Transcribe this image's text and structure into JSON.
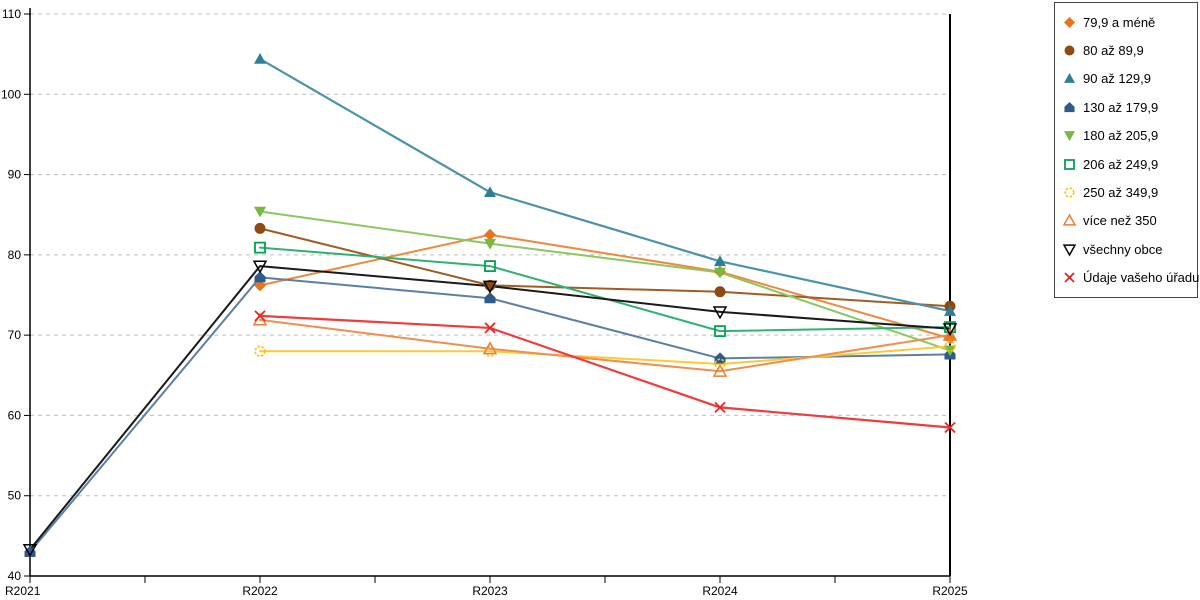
{
  "chart_data": {
    "type": "line",
    "title": "",
    "xlabel": "",
    "ylabel": "",
    "x_labels": [
      "R2021",
      "R2022",
      "R2023",
      "R2024",
      "R2025"
    ],
    "y_ticks": [
      40,
      50,
      60,
      70,
      80,
      90,
      100,
      110
    ],
    "ylim": [
      40,
      110
    ],
    "grid": "horizontal-dashed",
    "legend_position": "top-right-outside",
    "grid_color": "#bfbfbf",
    "axis_color": "#000000",
    "series": [
      {
        "name": "79,9 a méně",
        "marker": "diamond",
        "color": "#E8741E",
        "line_color": "#ED8A3E",
        "width": 2,
        "values": [
          null,
          76.2,
          82.5,
          77.9,
          69.6
        ]
      },
      {
        "name": "80 až 89,9",
        "marker": "circle",
        "color": "#8E4A10",
        "line_color": "#A05C22",
        "width": 2,
        "values": [
          null,
          83.3,
          76.2,
          75.4,
          73.6
        ]
      },
      {
        "name": "90 až 129,9",
        "marker": "triangle-up",
        "color": "#2E7F96",
        "line_color": "#4B93A7",
        "width": 2.2,
        "values": [
          null,
          104.4,
          87.8,
          79.2,
          73.0
        ]
      },
      {
        "name": "130 až 179,9",
        "marker": "pentagon",
        "color": "#2E5C8A",
        "line_color": "#5B7FA5",
        "width": 2,
        "values": [
          43.0,
          77.2,
          74.6,
          67.1,
          67.6
        ]
      },
      {
        "name": "180 až 205,9",
        "marker": "triangle-down",
        "color": "#76B93F",
        "line_color": "#8CC75F",
        "width": 2,
        "values": [
          null,
          85.4,
          81.4,
          77.8,
          68.1
        ]
      },
      {
        "name": "206 až 249,9",
        "marker": "square-open",
        "color": "#04A155",
        "line_color": "#2EB173",
        "width": 2,
        "values": [
          null,
          80.9,
          78.6,
          70.5,
          71.0
        ]
      },
      {
        "name": "250 až 349,9",
        "marker": "circle-open",
        "color": "#FFC000",
        "line_color": "#FFC934",
        "width": 2,
        "values": [
          null,
          68.0,
          68.0,
          66.4,
          68.6
        ]
      },
      {
        "name": "více než 350",
        "marker": "triangle-up-open",
        "color": "#ED7D31",
        "line_color": "#F08E4C",
        "width": 2,
        "values": [
          null,
          71.9,
          68.3,
          65.5,
          70.0
        ]
      },
      {
        "name": "všechny obce",
        "marker": "triangle-down-open",
        "color": "#000000",
        "line_color": "#1A1A1A",
        "width": 2,
        "values": [
          43.3,
          78.6,
          76.1,
          72.9,
          70.8
        ]
      },
      {
        "name": "Údaje vašeho úřadu",
        "marker": "x",
        "color": "#EE2222",
        "line_color": "#F23A3A",
        "width": 2.2,
        "values": [
          null,
          72.4,
          70.9,
          61.0,
          58.5
        ]
      }
    ]
  }
}
